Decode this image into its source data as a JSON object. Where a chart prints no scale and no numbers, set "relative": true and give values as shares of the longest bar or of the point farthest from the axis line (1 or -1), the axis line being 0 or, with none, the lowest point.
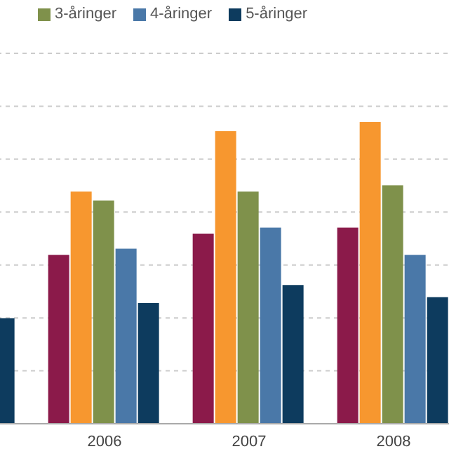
{
  "chart_data": {
    "type": "bar",
    "relative": true,
    "grid": "y",
    "legend": "top left",
    "categories": [
      null,
      "2006",
      "2007",
      "2008"
    ],
    "series": [
      {
        "color": "#8b1a4a",
        "values": [
          null,
          0.56,
          0.63,
          0.65
        ]
      },
      {
        "color": "#f7972f",
        "values": [
          null,
          0.77,
          0.97,
          1
        ]
      },
      {
        "name": "3-åringer",
        "color": "#7f914b",
        "values": [
          null,
          0.74,
          0.77,
          0.79
        ]
      },
      {
        "name": "4-åringer",
        "color": "#4a78a8",
        "values": [
          null,
          0.58,
          0.65,
          0.56
        ]
      },
      {
        "name": "5-åringer",
        "color": "#0d3b5e",
        "values": [
          0.35,
          0.4,
          0.46,
          0.42
        ]
      }
    ]
  }
}
